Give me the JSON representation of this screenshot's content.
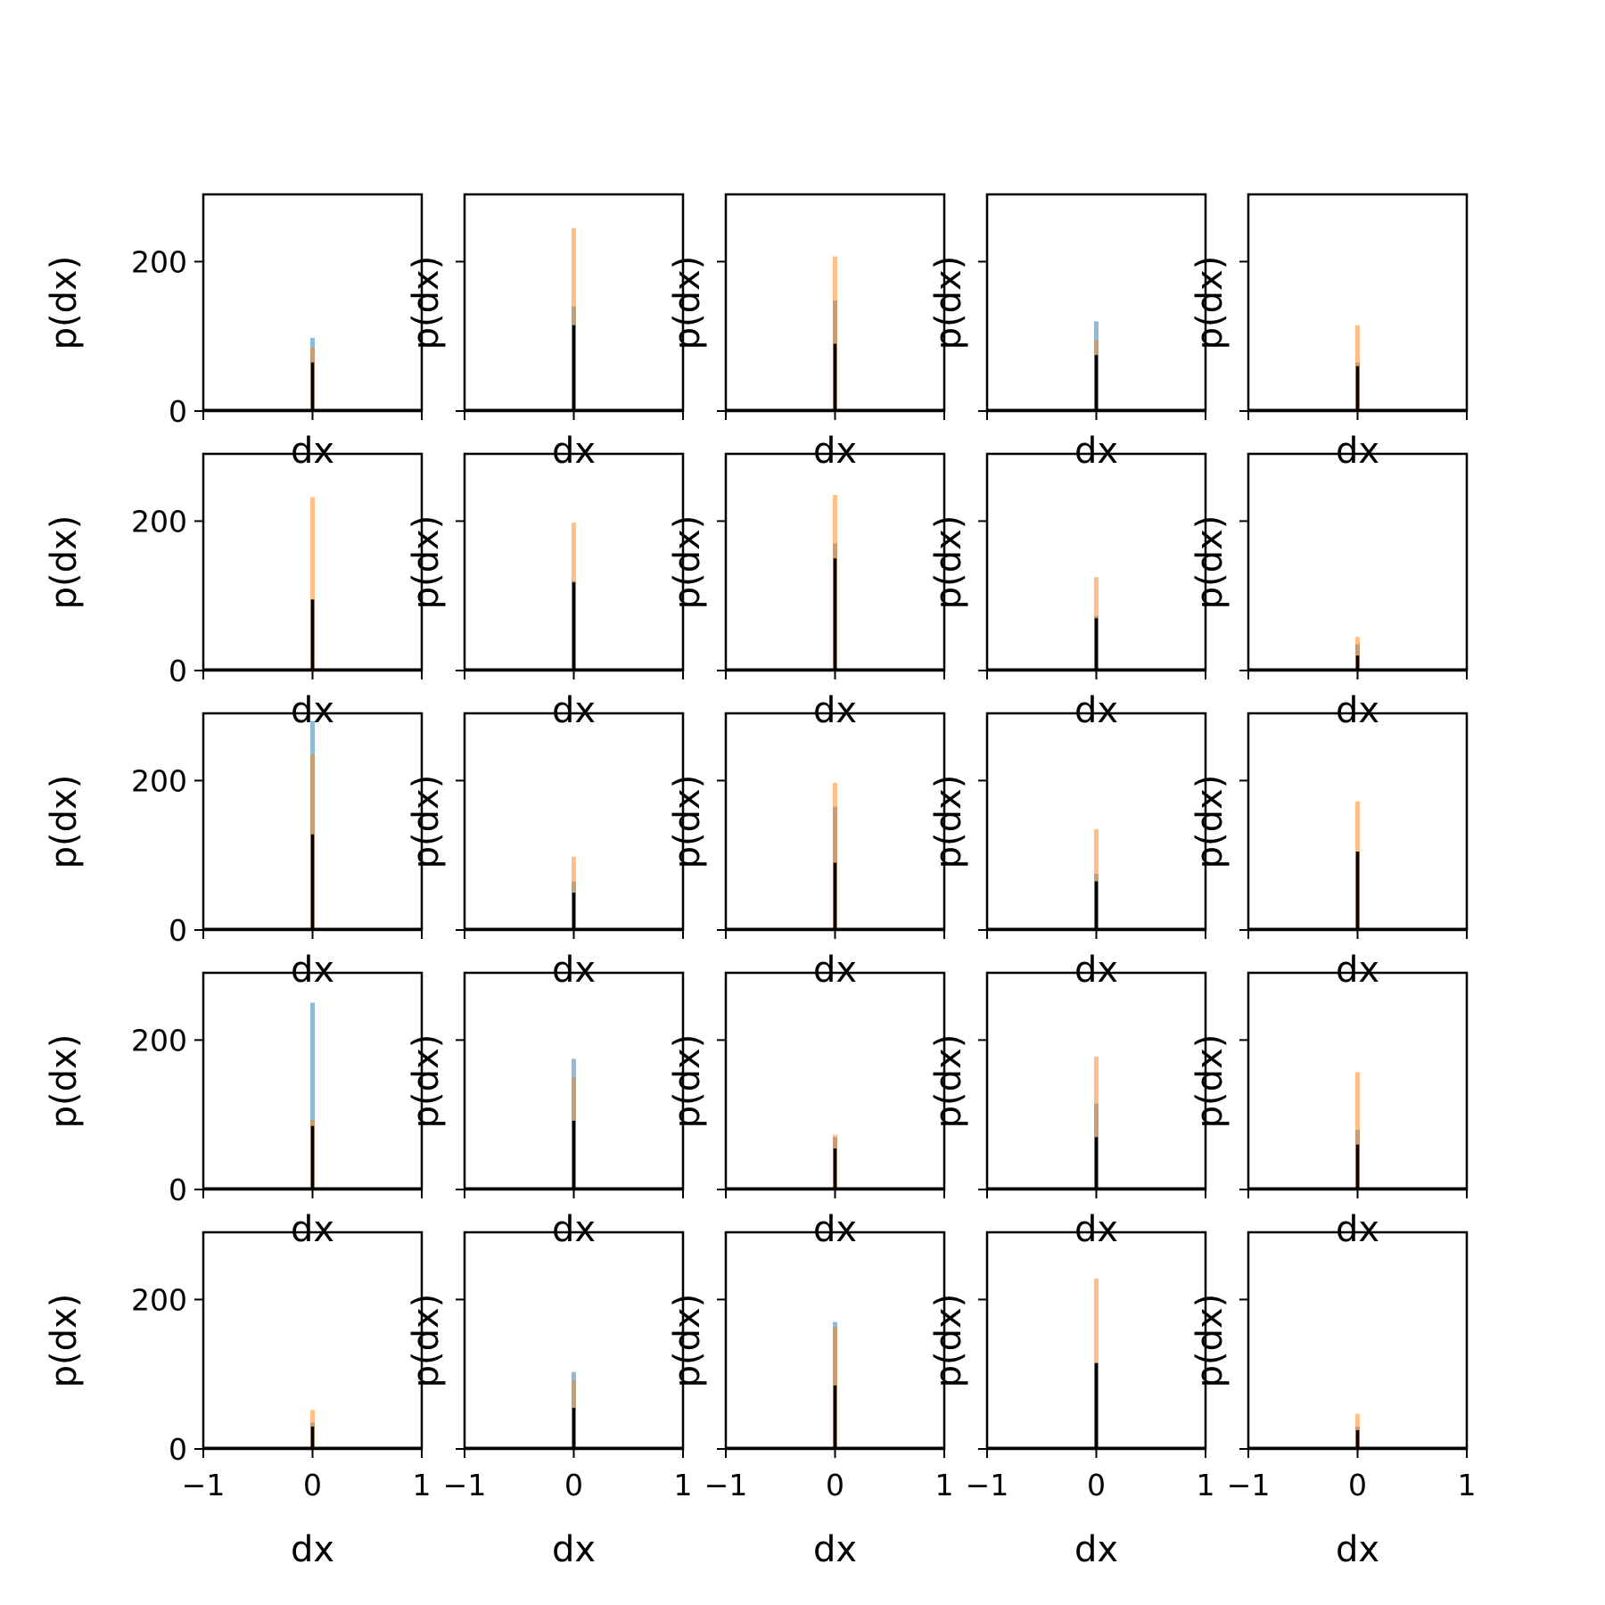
{
  "chart_data": {
    "type": "histogram-grid",
    "rows": 5,
    "cols": 5,
    "xlabel": "dx",
    "ylabel": "p(dx)",
    "xlim": [
      -1,
      1
    ],
    "ylim": [
      0,
      290
    ],
    "xticks": [
      -1,
      0,
      1
    ],
    "yticks": [
      0,
      200
    ],
    "series_colors": {
      "blue": "#1f77b4",
      "orange": "#ff7f0e",
      "black": "#000000"
    },
    "panels": [
      {
        "blue": 98,
        "orange": 85,
        "black": 65
      },
      {
        "blue": 140,
        "orange": 245,
        "black": 115
      },
      {
        "blue": 148,
        "orange": 207,
        "black": 90
      },
      {
        "blue": 120,
        "orange": 95,
        "black": 75
      },
      {
        "blue": 65,
        "orange": 115,
        "black": 60
      },
      {
        "blue": 95,
        "orange": 232,
        "black": 95
      },
      {
        "blue": 120,
        "orange": 198,
        "black": 118
      },
      {
        "blue": 170,
        "orange": 235,
        "black": 150
      },
      {
        "blue": 73,
        "orange": 125,
        "black": 70
      },
      {
        "blue": 35,
        "orange": 45,
        "black": 20
      },
      {
        "blue": 280,
        "orange": 235,
        "black": 128
      },
      {
        "blue": 65,
        "orange": 98,
        "black": 50
      },
      {
        "blue": 165,
        "orange": 197,
        "black": 90
      },
      {
        "blue": 75,
        "orange": 135,
        "black": 65
      },
      {
        "blue": 105,
        "orange": 172,
        "black": 105
      },
      {
        "blue": 250,
        "orange": 93,
        "black": 85
      },
      {
        "blue": 175,
        "orange": 150,
        "black": 92
      },
      {
        "blue": 70,
        "orange": 73,
        "black": 55
      },
      {
        "blue": 115,
        "orange": 178,
        "black": 70
      },
      {
        "blue": 80,
        "orange": 157,
        "black": 60
      },
      {
        "blue": 35,
        "orange": 52,
        "black": 30
      },
      {
        "blue": 103,
        "orange": 92,
        "black": 55
      },
      {
        "blue": 170,
        "orange": 163,
        "black": 85
      },
      {
        "blue": 115,
        "orange": 228,
        "black": 115
      },
      {
        "blue": 30,
        "orange": 47,
        "black": 25
      }
    ]
  }
}
